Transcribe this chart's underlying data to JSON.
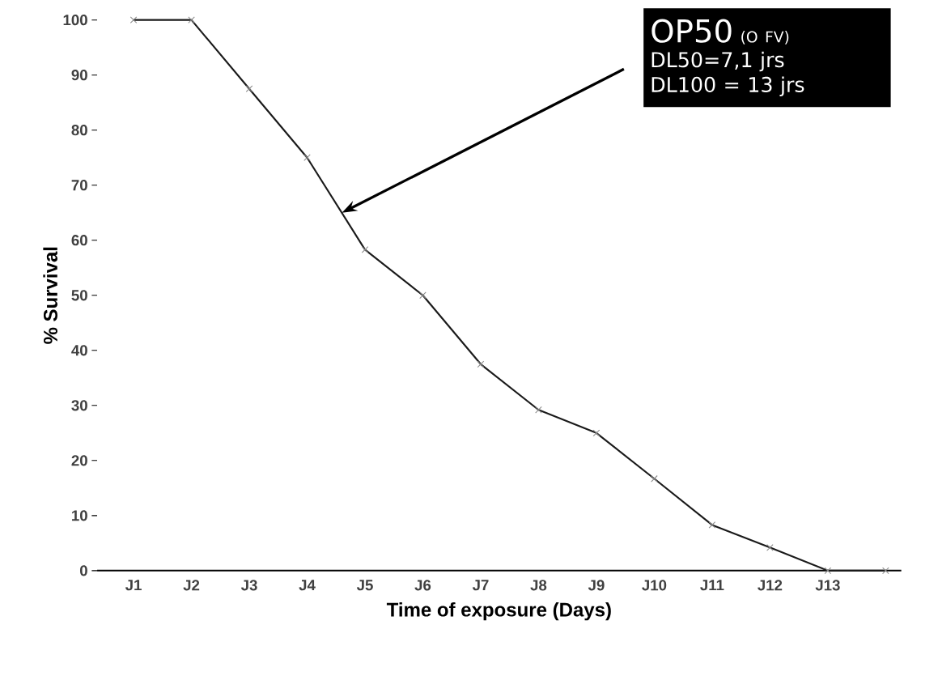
{
  "chart_data": {
    "type": "line",
    "xlabel": "Time of exposure (Days)",
    "ylabel": "% Survival",
    "categories": [
      "J1",
      "J2",
      "J3",
      "J4",
      "J5",
      "J6",
      "J7",
      "J8",
      "J9",
      "J10",
      "J11",
      "J12",
      "J13",
      null
    ],
    "values": [
      100,
      100,
      87.5,
      75,
      58.3,
      50,
      37.5,
      29.2,
      25,
      16.7,
      8.3,
      4.2,
      0,
      0
    ],
    "color": "#1a1a1a",
    "marker": "cross",
    "line_style": "solid",
    "ylim": [
      0,
      100
    ],
    "yticks": [
      0,
      10,
      20,
      30,
      40,
      50,
      60,
      70,
      80,
      90,
      100
    ],
    "annotations": [
      "OP50",
      "(O FV)",
      "DL50=7,1 jrs",
      "DL100 = 13 jrs"
    ]
  }
}
